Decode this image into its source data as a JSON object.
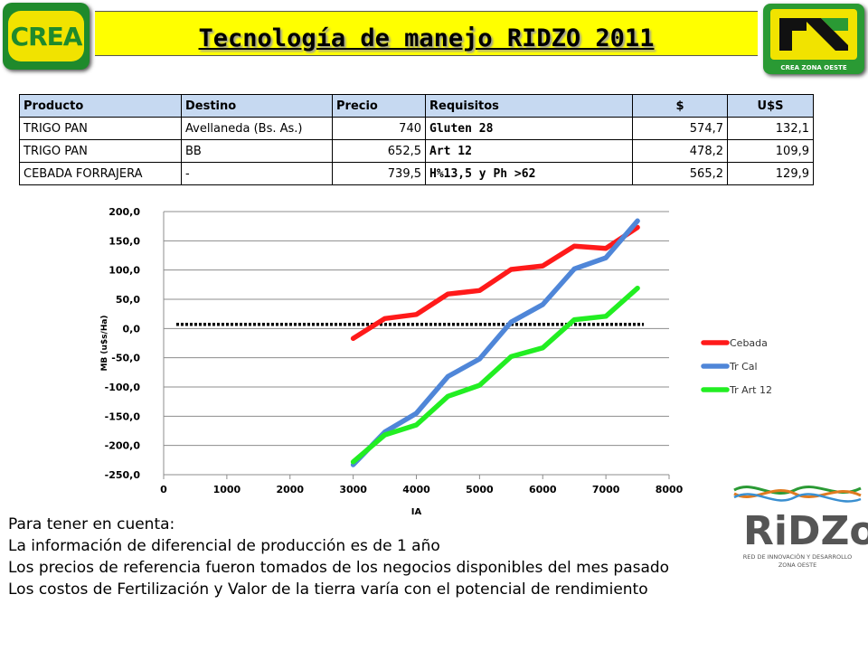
{
  "header": {
    "title": "Tecnología de manejo RIDZO 2011",
    "left_logo": "CREA",
    "right_logo_caption": "CREA ZONA OESTE"
  },
  "table": {
    "headers": [
      "Producto",
      "Destino",
      "Precio",
      "Requisitos",
      "$",
      "U$S"
    ],
    "rows": [
      [
        "TRIGO PAN",
        "Avellaneda (Bs. As.)",
        "740",
        "Gluten 28",
        "574,7",
        "132,1"
      ],
      [
        "TRIGO PAN",
        "BB",
        "652,5",
        "Art 12",
        "478,2",
        "109,9"
      ],
      [
        "CEBADA FORRAJERA",
        "-",
        "739,5",
        "H%13,5 y Ph >62",
        "565,2",
        "129,9"
      ]
    ]
  },
  "chart_data": {
    "type": "line",
    "xlabel": "IA",
    "ylabel": "MB (u$s/Ha)",
    "xlim": [
      0,
      8000
    ],
    "ylim": [
      -250,
      200
    ],
    "xticks": [
      "0",
      "1000",
      "2000",
      "3000",
      "4000",
      "5000",
      "6000",
      "7000",
      "8000"
    ],
    "yticks": [
      "200,0",
      "150,0",
      "100,0",
      "50,0",
      "0,0",
      "-50,0",
      "-100,0",
      "-150,0",
      "-200,0",
      "-250,0"
    ],
    "grid": true,
    "legend": "right",
    "reference_line": {
      "y": 7,
      "x": [
        200,
        7600
      ],
      "style": "dotted"
    },
    "series": [
      {
        "name": "Cebada",
        "color": "#ff1a1a",
        "points": [
          [
            3000,
            -17
          ],
          [
            3500,
            17
          ],
          [
            4000,
            24
          ],
          [
            4500,
            59
          ],
          [
            5000,
            65
          ],
          [
            5500,
            101
          ],
          [
            6000,
            107
          ],
          [
            6500,
            141
          ],
          [
            7000,
            137
          ],
          [
            7500,
            173
          ]
        ]
      },
      {
        "name": "Tr Cal",
        "color": "#4f86d8",
        "points": [
          [
            3000,
            -233
          ],
          [
            3500,
            -177
          ],
          [
            4000,
            -145
          ],
          [
            4500,
            -82
          ],
          [
            5000,
            -52
          ],
          [
            5500,
            11
          ],
          [
            6000,
            41
          ],
          [
            6500,
            102
          ],
          [
            7000,
            121
          ],
          [
            7500,
            184
          ]
        ]
      },
      {
        "name": "Tr Art 12",
        "color": "#22ee22",
        "points": [
          [
            3000,
            -228
          ],
          [
            3500,
            -182
          ],
          [
            4000,
            -165
          ],
          [
            4500,
            -116
          ],
          [
            5000,
            -97
          ],
          [
            5500,
            -48
          ],
          [
            6000,
            -33
          ],
          [
            6500,
            15
          ],
          [
            7000,
            21
          ],
          [
            7500,
            69
          ]
        ]
      }
    ]
  },
  "notes": [
    "Para tener en cuenta:",
    "La información de diferencial de producción es de 1 año",
    "Los precios de referencia fueron tomados de los negocios disponibles del mes pasado",
    "Los costos de Fertilización y Valor de la tierra varía con el potencial de rendimiento"
  ],
  "ridzo": {
    "name": "RiDZo",
    "caption1": "RED DE INNOVACIÓN Y DESARROLLO",
    "caption2": "ZONA OESTE"
  }
}
